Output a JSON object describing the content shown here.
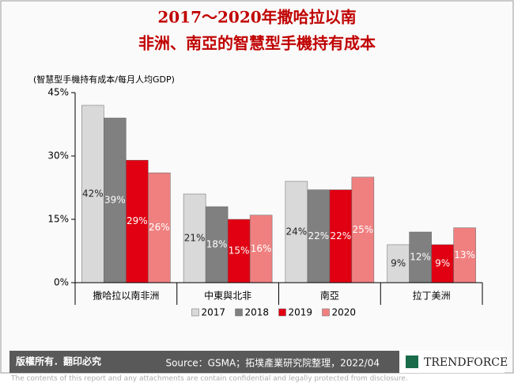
{
  "chart_data": {
    "type": "bar",
    "title": [
      "2017～2020年撒哈拉以南",
      "非洲、南亞的智慧型手機持有成本"
    ],
    "ylabel": "(智慧型手機持有成本/每月人均GDP)",
    "categories": [
      "撒哈拉以南非洲",
      "中東與北非",
      "南亞",
      "拉丁美洲"
    ],
    "series": [
      {
        "name": "2017",
        "color": "#d9d9d9",
        "values": [
          42,
          21,
          24,
          9
        ],
        "value_labels": [
          "42%",
          "21%",
          "24%",
          "9%"
        ]
      },
      {
        "name": "2018",
        "color": "#808080",
        "values": [
          39,
          18,
          22,
          12
        ],
        "value_labels": [
          "39%",
          "18%",
          "22%",
          "12%"
        ]
      },
      {
        "name": "2019",
        "color": "#e00012",
        "values": [
          29,
          15,
          22,
          9
        ],
        "value_labels": [
          "29%",
          "15%",
          "22%",
          "9%"
        ]
      },
      {
        "name": "2020",
        "color": "#f08080",
        "values": [
          26,
          16,
          25,
          13
        ],
        "value_labels": [
          "26%",
          "16%",
          "25%",
          "13%"
        ]
      }
    ],
    "ylim": [
      0,
      45
    ],
    "yticks": [
      {
        "value": 0,
        "label": "0%"
      },
      {
        "value": 15,
        "label": "15%"
      },
      {
        "value": 30,
        "label": "30%"
      },
      {
        "value": 45,
        "label": "45%"
      }
    ],
    "grid": false,
    "legend": "bottom"
  },
  "footer": {
    "rights": "版權所有．翻印必究",
    "source": "Source：GSMA；拓墣產業研究院整理，2022/04",
    "logo": "TRENDFORCE",
    "disclaimer": "The contents of this report and any attachments are contain confidential and legally protected from disclosure."
  }
}
